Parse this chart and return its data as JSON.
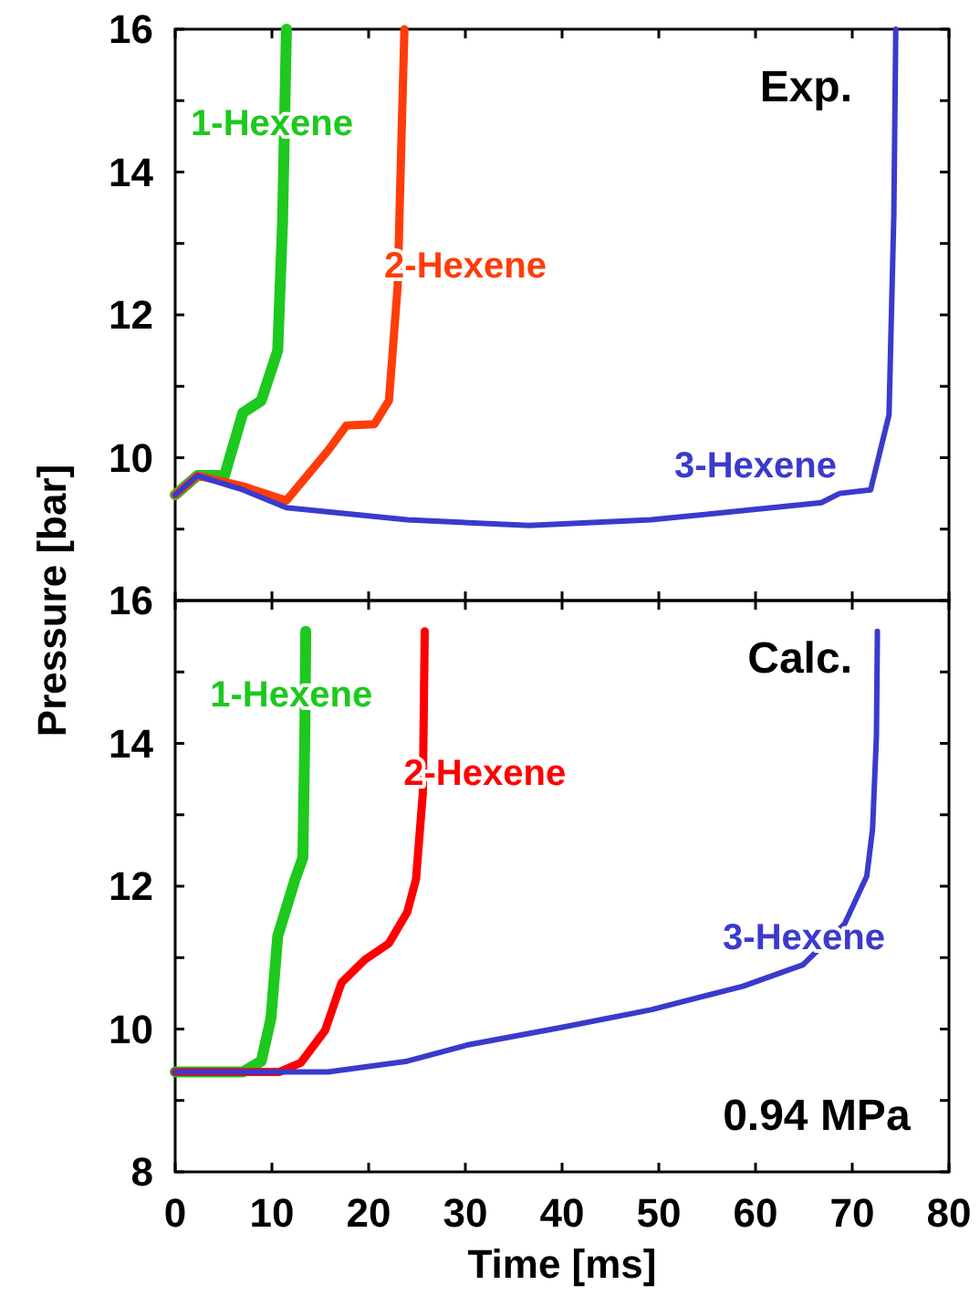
{
  "chart_data": [
    {
      "type": "line",
      "ylabel": "Pressure [bar]",
      "xlim": [
        0,
        80
      ],
      "ylim": [
        8,
        16
      ],
      "tick_labels": "y",
      "annotations": [
        "Exp."
      ],
      "xticks": [
        0,
        10,
        20,
        30,
        40,
        50,
        60,
        70,
        80
      ],
      "yticks": [
        {
          "value": 9,
          "label": null
        },
        10,
        {
          "value": 11,
          "label": null
        },
        12,
        {
          "value": 13,
          "label": null
        },
        14,
        {
          "value": 15,
          "label": null
        },
        16
      ],
      "series": [
        {
          "name": "1-Hexene",
          "color": "#1ec81e",
          "x": [
            0,
            2.3,
            5.1,
            7,
            8.9,
            10.6,
            11.1,
            11.5
          ],
          "values": [
            9.48,
            9.75,
            9.75,
            10.63,
            10.8,
            11.5,
            13.3,
            16
          ]
        },
        {
          "name": "2-Hexene",
          "color": "#ff3c0a",
          "x": [
            0,
            2.3,
            7,
            11.5,
            15.8,
            17.7,
            20.6,
            22.1,
            23,
            23.4,
            23.7
          ],
          "values": [
            9.48,
            9.75,
            9.6,
            9.4,
            10.1,
            10.45,
            10.47,
            10.8,
            12.4,
            14.5,
            16
          ]
        },
        {
          "name": "3-Hexene",
          "color": "#3a3acc",
          "x": [
            0,
            2.3,
            7,
            11.5,
            24,
            36.6,
            49.2,
            61.7,
            66.8,
            68.7,
            71.9,
            73.8,
            74.3,
            74.5
          ],
          "values": [
            9.48,
            9.75,
            9.55,
            9.3,
            9.13,
            9.05,
            9.13,
            9.3,
            9.37,
            9.5,
            9.55,
            10.6,
            13.4,
            16
          ]
        }
      ]
    },
    {
      "type": "line",
      "xlabel": "Time [ms]",
      "xlim": [
        0,
        80
      ],
      "ylim": [
        8,
        16
      ],
      "annotations": [
        "Calc.",
        "0.94 MPa"
      ],
      "xticks": [
        0,
        10,
        20,
        30,
        40,
        50,
        60,
        70,
        80
      ],
      "yticks": [
        8,
        {
          "value": 9,
          "label": null
        },
        10,
        {
          "value": 11,
          "label": null
        },
        12,
        {
          "value": 13,
          "label": null
        },
        14,
        {
          "value": 15,
          "label": null
        },
        16
      ],
      "series": [
        {
          "name": "1-Hexene",
          "color": "#1ec81e",
          "x": [
            0,
            7,
            8.9,
            9.9,
            10.6,
            11.5,
            12.4,
            13.2,
            13.4,
            13.5
          ],
          "values": [
            9.4,
            9.4,
            9.55,
            10.15,
            11.3,
            11.7,
            12.1,
            12.4,
            14.1,
            15.57
          ]
        },
        {
          "name": "2-Hexene",
          "color": "#ff0000",
          "x": [
            0,
            10.8,
            13,
            15.5,
            17.2,
            19.6,
            22.1,
            24,
            24.9,
            25.6,
            25.8
          ],
          "values": [
            9.4,
            9.4,
            9.53,
            9.98,
            10.65,
            10.97,
            11.2,
            11.64,
            12.1,
            13.3,
            15.57
          ]
        },
        {
          "name": "3-Hexene",
          "color": "#3a3acc",
          "x": [
            0,
            15.8,
            24,
            30.3,
            39.8,
            49.2,
            58.7,
            64.9,
            69.2,
            71.5,
            72.1,
            72.5,
            72.6
          ],
          "values": [
            9.4,
            9.4,
            9.55,
            9.78,
            10.02,
            10.27,
            10.6,
            10.9,
            11.47,
            12.14,
            12.8,
            14.1,
            15.57
          ]
        }
      ]
    }
  ]
}
